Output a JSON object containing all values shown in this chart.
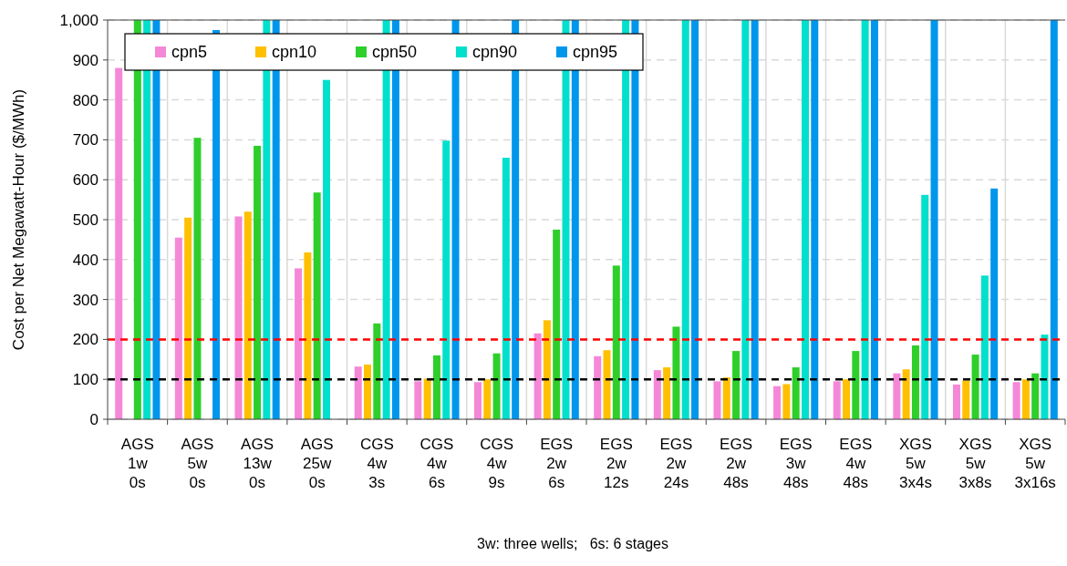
{
  "chart_data": {
    "type": "bar",
    "ylabel": "Cost per Net Megawatt-Hour ($/MWh)",
    "categories": [
      "AGS\n1w\n0s",
      "AGS\n5w\n0s",
      "AGS\n13w\n0s",
      "AGS\n25w\n0s",
      "CGS\n4w\n3s",
      "CGS\n4w\n6s",
      "CGS\n4w\n9s",
      "EGS\n2w\n6s",
      "EGS\n2w\n12s",
      "EGS\n2w\n24s",
      "EGS\n2w\n48s",
      "EGS\n3w\n48s",
      "EGS\n4w\n48s",
      "XGS\n5w\n3x4s",
      "XGS\n5w\n3x8s",
      "XGS\n5w\n3x16s"
    ],
    "series": [
      {
        "name": "cpn5",
        "color": "#f587d8",
        "values": [
          880,
          455,
          508,
          378,
          132,
          95,
          93,
          215,
          158,
          123,
          95,
          83,
          95,
          115,
          87,
          93
        ]
      },
      {
        "name": "cpn10",
        "color": "#ffc000",
        "values": [
          null,
          505,
          520,
          418,
          137,
          102,
          100,
          248,
          173,
          130,
          105,
          88,
          100,
          125,
          97,
          100
        ]
      },
      {
        "name": "cpn50",
        "color": "#2ecf2a",
        "values": [
          1000,
          705,
          685,
          568,
          240,
          160,
          165,
          475,
          385,
          232,
          171,
          130,
          171,
          185,
          162,
          115
        ]
      },
      {
        "name": "cpn90",
        "color": "#00e0cc",
        "values": [
          1000,
          null,
          1000,
          850,
          1000,
          698,
          655,
          1000,
          1000,
          1000,
          1000,
          1000,
          1000,
          562,
          360,
          212
        ]
      },
      {
        "name": "cpn95",
        "color": "#0096ec",
        "values": [
          1000,
          975,
          1000,
          null,
          1000,
          1000,
          1000,
          1000,
          1000,
          1000,
          1000,
          1000,
          1000,
          1000,
          578,
          1000
        ]
      }
    ],
    "ylim": [
      0,
      1000
    ],
    "yticks": [
      0,
      100,
      200,
      300,
      400,
      500,
      600,
      700,
      800,
      900,
      {
        "value": 1000,
        "label": "1,000"
      }
    ],
    "grid": true,
    "legend": "top left",
    "ref_lines": [
      {
        "axis": "y",
        "value": 200,
        "color": "#ff0000",
        "line_style": "dashed"
      },
      {
        "axis": "y",
        "value": 100,
        "color": "#000000",
        "line_style": "dashed"
      }
    ],
    "annotations": [
      "3w: three wells;   6s: 6 stages"
    ]
  }
}
